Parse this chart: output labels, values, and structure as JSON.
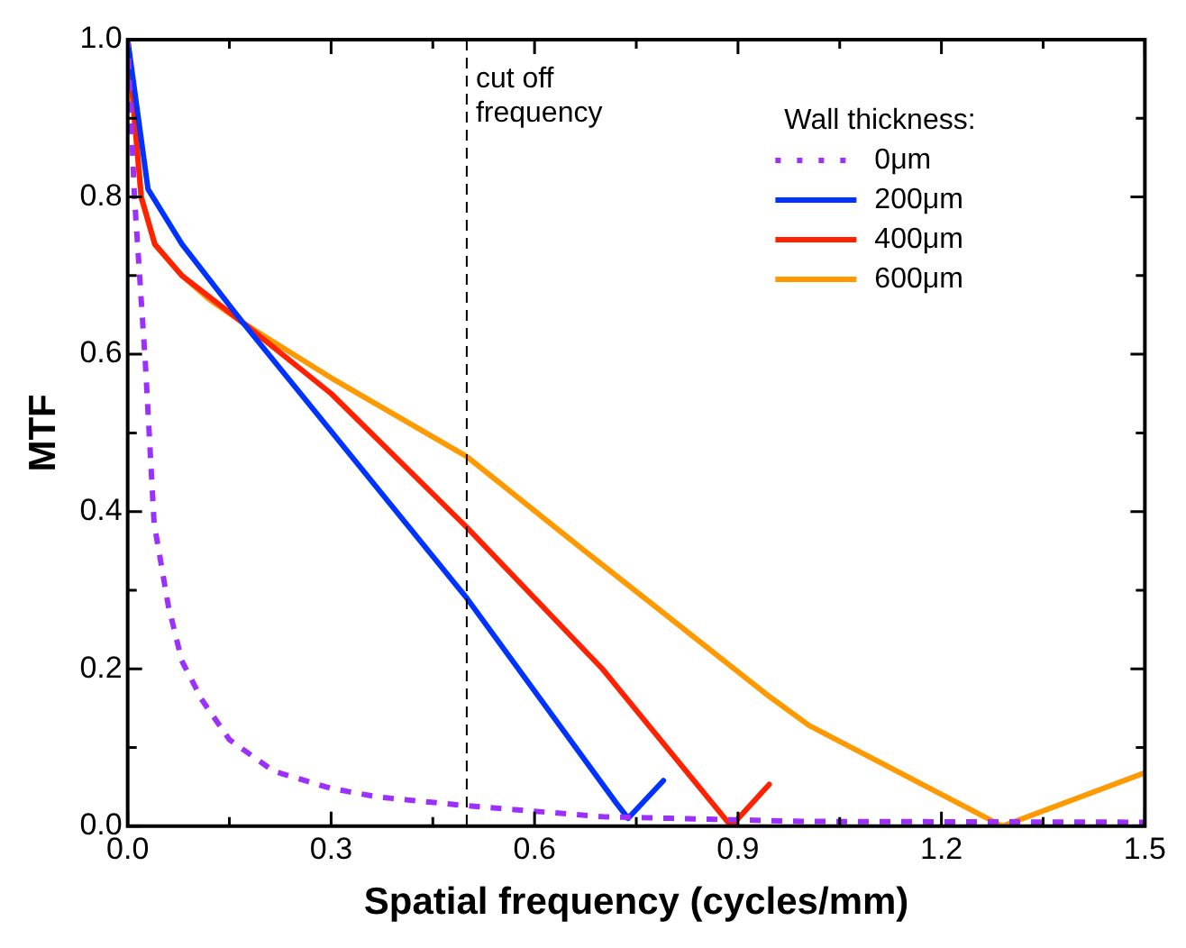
{
  "chart_data": {
    "type": "line",
    "xlabel": "Spatial frequency (cycles/mm)",
    "ylabel": "MTF",
    "legend_title": "Wall thickness:",
    "legend": "top right",
    "grid": false,
    "xlim": [
      0,
      1.5
    ],
    "xticks": [
      {
        "value": 0,
        "label": "0.0"
      },
      0.3,
      0.6,
      0.9,
      1.2,
      1.5
    ],
    "ylim": [
      0,
      1
    ],
    "yticks": [
      {
        "value": 0,
        "label": "0.0"
      },
      0.2,
      0.4,
      0.6,
      0.8,
      {
        "value": 1,
        "label": "1.0"
      }
    ],
    "ref_lines": [
      {
        "axis": "x",
        "value": 0.5,
        "label": "cut off frequency",
        "line_style": "dashed",
        "color": "#000000"
      }
    ],
    "series": [
      {
        "name": "0μm",
        "color": "#9b30ff",
        "line_style": "dotted",
        "x": [
          0,
          0.01,
          0.026,
          0.039,
          0.06,
          0.08,
          0.11,
          0.15,
          0.215,
          0.3,
          0.37,
          0.5,
          0.7,
          1.0,
          1.5
        ],
        "values": [
          1,
          0.8,
          0.59,
          0.385,
          0.28,
          0.21,
          0.16,
          0.11,
          0.07,
          0.048,
          0.037,
          0.026,
          0.012,
          0.006,
          0.005
        ]
      },
      {
        "name": "200μm",
        "color": "#0033ff",
        "line_style": "solid",
        "x": [
          0,
          0.03,
          0.08,
          0.17,
          0.5,
          0.72,
          0.738,
          0.79
        ],
        "values": [
          1,
          0.81,
          0.74,
          0.64,
          0.29,
          0.03,
          0.01,
          0.058
        ]
      },
      {
        "name": "400μm",
        "color": "#ff2200",
        "line_style": "solid",
        "x": [
          0,
          0.02,
          0.04,
          0.08,
          0.17,
          0.3,
          0.5,
          0.7,
          0.89,
          0.946
        ],
        "values": [
          1,
          0.8,
          0.74,
          0.7,
          0.64,
          0.55,
          0.38,
          0.2,
          0,
          0.053
        ]
      },
      {
        "name": "600μm",
        "color": "#ff9900",
        "line_style": "solid",
        "x": [
          0,
          0.02,
          0.04,
          0.08,
          0.12,
          0.17,
          0.3,
          0.5,
          0.674,
          0.946,
          1.005,
          1.29,
          1.5
        ],
        "values": [
          1,
          0.8,
          0.74,
          0.7,
          0.67,
          0.64,
          0.57,
          0.47,
          0.35,
          0.165,
          0.128,
          0,
          0.068
        ]
      }
    ]
  }
}
